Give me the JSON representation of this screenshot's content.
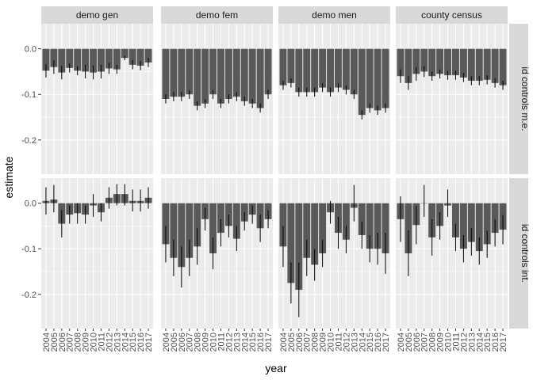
{
  "chart_data": {
    "type": "bar",
    "xlabel": "year",
    "ylabel": "estimate",
    "ylim": [
      -0.275,
      0.055
    ],
    "y_ticks": [
      -0.2,
      -0.1,
      0.0
    ],
    "y_tick_labels": [
      "-0.2",
      "-0.1",
      "0.0"
    ],
    "x": [
      "2004",
      "2005",
      "2006",
      "2007",
      "2008",
      "2009",
      "2010",
      "2011",
      "2012",
      "2013",
      "2014",
      "2015",
      "2016",
      "2017"
    ],
    "columns": [
      "demo gen",
      "demo fem",
      "demo men",
      "county census"
    ],
    "rows": [
      "id controls m.e.",
      "id controls int."
    ],
    "colors": {
      "bar": "#595959",
      "panel": "#ebebeb",
      "grid": "#ffffff",
      "strip": "#d9d9d9",
      "error": "#000000"
    },
    "grid": true,
    "panels": [
      {
        "column": "demo gen",
        "row": "id controls m.e.",
        "values": [
          -0.048,
          -0.04,
          -0.052,
          -0.042,
          -0.048,
          -0.05,
          -0.052,
          -0.05,
          -0.043,
          -0.045,
          -0.02,
          -0.035,
          -0.037,
          -0.03
        ],
        "error_low": [
          -0.063,
          -0.055,
          -0.067,
          -0.052,
          -0.058,
          -0.065,
          -0.067,
          -0.065,
          -0.055,
          -0.055,
          -0.025,
          -0.045,
          -0.047,
          -0.04
        ],
        "error_high": [
          -0.033,
          -0.025,
          -0.037,
          -0.032,
          -0.038,
          -0.035,
          -0.037,
          -0.035,
          -0.031,
          -0.035,
          -0.015,
          -0.025,
          -0.027,
          -0.02
        ]
      },
      {
        "column": "demo fem",
        "row": "id controls m.e.",
        "values": [
          -0.11,
          -0.105,
          -0.105,
          -0.1,
          -0.125,
          -0.12,
          -0.1,
          -0.12,
          -0.11,
          -0.105,
          -0.115,
          -0.12,
          -0.13,
          -0.1
        ],
        "error_low": [
          -0.12,
          -0.115,
          -0.115,
          -0.11,
          -0.135,
          -0.13,
          -0.11,
          -0.13,
          -0.12,
          -0.115,
          -0.125,
          -0.13,
          -0.14,
          -0.11
        ],
        "error_high": [
          -0.1,
          -0.095,
          -0.095,
          -0.09,
          -0.115,
          -0.11,
          -0.09,
          -0.11,
          -0.1,
          -0.095,
          -0.105,
          -0.11,
          -0.12,
          -0.09
        ]
      },
      {
        "column": "demo men",
        "row": "id controls m.e.",
        "values": [
          -0.08,
          -0.075,
          -0.095,
          -0.095,
          -0.095,
          -0.085,
          -0.095,
          -0.085,
          -0.09,
          -0.1,
          -0.145,
          -0.13,
          -0.135,
          -0.13
        ],
        "error_low": [
          -0.09,
          -0.085,
          -0.105,
          -0.105,
          -0.105,
          -0.095,
          -0.105,
          -0.095,
          -0.1,
          -0.11,
          -0.155,
          -0.14,
          -0.145,
          -0.14
        ],
        "error_high": [
          -0.07,
          -0.065,
          -0.085,
          -0.085,
          -0.085,
          -0.075,
          -0.085,
          -0.075,
          -0.08,
          -0.09,
          -0.135,
          -0.12,
          -0.125,
          -0.12
        ]
      },
      {
        "column": "county census",
        "row": "id controls m.e.",
        "values": [
          -0.06,
          -0.075,
          -0.055,
          -0.05,
          -0.06,
          -0.055,
          -0.058,
          -0.058,
          -0.063,
          -0.07,
          -0.07,
          -0.068,
          -0.075,
          -0.08
        ],
        "error_low": [
          -0.075,
          -0.09,
          -0.07,
          -0.062,
          -0.07,
          -0.065,
          -0.068,
          -0.068,
          -0.073,
          -0.08,
          -0.08,
          -0.078,
          -0.085,
          -0.09
        ],
        "error_high": [
          -0.045,
          -0.06,
          -0.04,
          -0.038,
          -0.05,
          -0.045,
          -0.048,
          -0.048,
          -0.053,
          -0.06,
          -0.06,
          -0.058,
          -0.065,
          -0.07
        ]
      },
      {
        "column": "demo gen",
        "row": "id controls int.",
        "values": [
          0.005,
          0.008,
          -0.045,
          -0.025,
          -0.022,
          -0.025,
          -0.005,
          -0.02,
          0.012,
          0.02,
          0.02,
          0.005,
          0.005,
          0.012
        ],
        "error_low": [
          -0.025,
          -0.02,
          -0.075,
          -0.045,
          -0.045,
          -0.045,
          -0.03,
          -0.04,
          -0.012,
          -0.005,
          -0.005,
          -0.018,
          -0.018,
          -0.012
        ],
        "error_high": [
          0.035,
          0.04,
          -0.015,
          -0.005,
          0.0,
          -0.005,
          0.02,
          0.0,
          0.035,
          0.042,
          0.042,
          0.03,
          0.03,
          0.035
        ]
      },
      {
        "column": "demo fem",
        "row": "id controls int.",
        "values": [
          -0.09,
          -0.12,
          -0.14,
          -0.12,
          -0.095,
          -0.035,
          -0.11,
          -0.065,
          -0.05,
          -0.078,
          -0.04,
          -0.025,
          -0.055,
          -0.035
        ],
        "error_low": [
          -0.13,
          -0.16,
          -0.185,
          -0.16,
          -0.135,
          -0.06,
          -0.145,
          -0.095,
          -0.075,
          -0.105,
          -0.06,
          -0.045,
          -0.085,
          -0.055
        ],
        "error_high": [
          -0.05,
          -0.08,
          -0.095,
          -0.08,
          -0.055,
          -0.01,
          -0.075,
          -0.035,
          -0.025,
          -0.05,
          -0.02,
          -0.005,
          -0.025,
          -0.015
        ]
      },
      {
        "column": "demo men",
        "row": "id controls int.",
        "values": [
          -0.095,
          -0.175,
          -0.19,
          -0.12,
          -0.135,
          -0.11,
          -0.02,
          -0.065,
          -0.08,
          -0.01,
          -0.07,
          -0.1,
          -0.1,
          -0.11
        ],
        "error_low": [
          -0.14,
          -0.22,
          -0.25,
          -0.16,
          -0.17,
          -0.14,
          -0.045,
          -0.1,
          -0.11,
          -0.04,
          -0.1,
          -0.13,
          -0.135,
          -0.155
        ],
        "error_high": [
          -0.05,
          -0.13,
          -0.13,
          -0.08,
          -0.1,
          -0.08,
          0.005,
          -0.03,
          -0.05,
          0.04,
          -0.04,
          -0.07,
          -0.065,
          -0.065
        ]
      },
      {
        "column": "county census",
        "row": "id controls int.",
        "values": [
          -0.035,
          -0.11,
          -0.048,
          0.0,
          -0.075,
          -0.05,
          -0.005,
          -0.075,
          -0.1,
          -0.085,
          -0.105,
          -0.09,
          -0.065,
          -0.058
        ],
        "error_low": [
          -0.085,
          -0.16,
          -0.09,
          -0.03,
          -0.115,
          -0.08,
          -0.03,
          -0.105,
          -0.13,
          -0.115,
          -0.135,
          -0.12,
          -0.095,
          -0.09
        ],
        "error_high": [
          0.015,
          -0.06,
          -0.006,
          0.04,
          -0.035,
          -0.02,
          0.03,
          -0.045,
          -0.07,
          -0.055,
          -0.075,
          -0.06,
          -0.035,
          -0.026
        ]
      }
    ]
  }
}
